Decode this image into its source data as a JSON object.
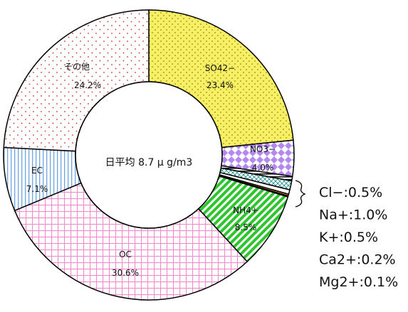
{
  "chart_data": {
    "type": "pie",
    "donut": true,
    "center_label": "日平均  8.7 μ g/m3",
    "slices": [
      {
        "label": "SO42−",
        "percent_text": "23.4%",
        "value": 23.4,
        "color": "#f7ef66",
        "pattern": "dots-yellow"
      },
      {
        "label": "NO3−",
        "percent_text": "4.0%",
        "value": 4.0,
        "color": "#b388f0",
        "pattern": "diamonds-purple"
      },
      {
        "label": "Cl−",
        "value": 0.5,
        "color": "#ffffff",
        "pattern": "stripes-black"
      },
      {
        "label": "Na+",
        "value": 1.0,
        "color": "#ffffff",
        "pattern": "crosshatch-teal"
      },
      {
        "label": "K+",
        "value": 0.5,
        "color": "#ffffff",
        "pattern": "solid-white"
      },
      {
        "label": "Ca2+",
        "value": 0.2,
        "color": "#e8901c",
        "pattern": "solid-orange"
      },
      {
        "label": "Mg2+",
        "value": 0.1,
        "color": "#222222",
        "pattern": "solid-black"
      },
      {
        "label": "NH4+",
        "percent_text": "8.5%",
        "value": 8.5,
        "color": "#33cc33",
        "pattern": "diagonal-green"
      },
      {
        "label": "OC",
        "percent_text": "30.6%",
        "value": 30.6,
        "color": "#f08cd2",
        "pattern": "grid-pink"
      },
      {
        "label": "EC",
        "percent_text": "7.1%",
        "value": 7.1,
        "color": "#6fa6e0",
        "pattern": "vlines-blue"
      },
      {
        "label": "その他",
        "percent_text": "24.2%",
        "value": 24.2,
        "color": "#d03030",
        "pattern": "dots-red"
      }
    ],
    "side_labels": [
      {
        "label": "Cl−",
        "text": "Cl−:0.5%"
      },
      {
        "label": "Na+",
        "text": "Na+:1.0%"
      },
      {
        "label": "K+",
        "text": "K+:0.5%"
      },
      {
        "label": "Ca2+",
        "text": "Ca2+:0.2%"
      },
      {
        "label": "Mg2+",
        "text": "Mg2+:0.1%"
      }
    ]
  }
}
